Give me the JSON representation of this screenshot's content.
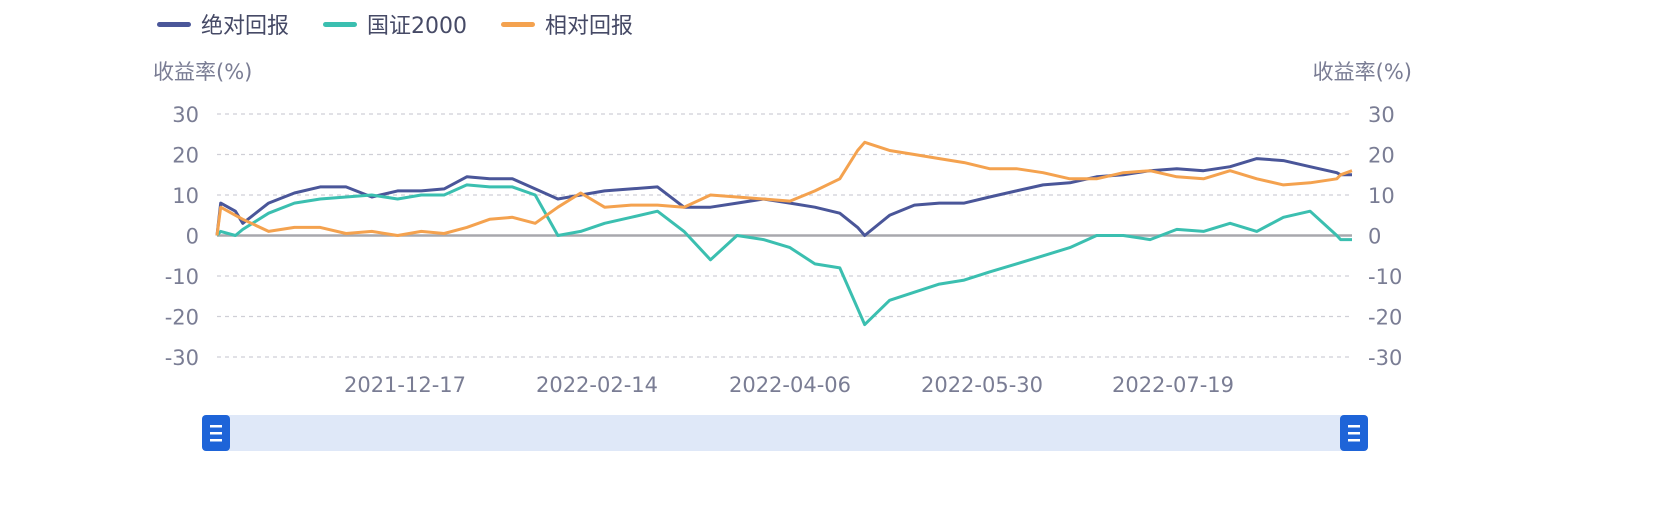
{
  "legend": [
    {
      "name": "绝对回报",
      "color": "#4a5699"
    },
    {
      "name": "国证2000",
      "color": "#3bbfb0"
    },
    {
      "name": "相对回报",
      "color": "#f4a24f"
    }
  ],
  "chart_data": {
    "type": "line",
    "ylabel_left": "收益率(%)",
    "ylabel_right": "收益率(%)",
    "ylim": [
      -30,
      30
    ],
    "y_ticks": [
      30,
      20,
      10,
      0,
      -10,
      -20,
      -30
    ],
    "x_ticks": [
      "2021-12-17",
      "2022-02-14",
      "2022-04-06",
      "2022-05-30",
      "2022-07-19"
    ],
    "grid": true,
    "legend_position": "top-left",
    "x": [
      "2021-10-27",
      "2021-10-28",
      "2021-11-01",
      "2021-11-03",
      "2021-11-10",
      "2021-11-17",
      "2021-11-24",
      "2021-12-01",
      "2021-12-08",
      "2021-12-15",
      "2021-12-22",
      "2021-12-29",
      "2022-01-05",
      "2022-01-12",
      "2022-01-19",
      "2022-01-26",
      "2022-02-02",
      "2022-02-09",
      "2022-02-16",
      "2022-02-23",
      "2022-03-02",
      "2022-03-09",
      "2022-03-16",
      "2022-03-23",
      "2022-03-30",
      "2022-04-06",
      "2022-04-13",
      "2022-04-20",
      "2022-04-25",
      "2022-04-27",
      "2022-05-04",
      "2022-05-11",
      "2022-05-18",
      "2022-05-25",
      "2022-06-01",
      "2022-06-08",
      "2022-06-15",
      "2022-06-22",
      "2022-06-29",
      "2022-07-06",
      "2022-07-13",
      "2022-07-20",
      "2022-07-27",
      "2022-08-03",
      "2022-08-10",
      "2022-08-17",
      "2022-08-24",
      "2022-08-31",
      "2022-09-01",
      "2022-09-04"
    ],
    "series": [
      {
        "name": "绝对回报",
        "color": "#4a5699",
        "values": [
          0,
          8,
          6,
          3,
          8,
          10.5,
          12,
          12,
          9.5,
          11,
          11,
          11.5,
          14.5,
          14,
          14,
          11.5,
          9,
          10,
          11,
          11.5,
          12,
          7,
          7,
          8,
          9,
          8,
          7,
          5.5,
          2,
          0,
          5,
          7.5,
          8,
          8,
          9.5,
          11,
          12.5,
          13,
          14.5,
          15,
          16,
          16.5,
          16,
          17,
          19,
          18.5,
          17,
          15.5,
          15,
          15
        ]
      },
      {
        "name": "国证2000",
        "color": "#3bbfb0",
        "values": [
          0,
          1,
          0,
          1.5,
          5.5,
          8,
          9,
          9.5,
          10,
          9,
          10,
          10,
          12.5,
          12,
          12,
          10,
          0,
          1,
          3,
          4.5,
          6,
          1,
          -6,
          0,
          -1,
          -3,
          -7,
          -8,
          -18,
          -22,
          -16,
          -14,
          -12,
          -11,
          -9,
          -7,
          -5,
          -3,
          0,
          0,
          -1,
          1.5,
          1,
          3,
          1,
          4.5,
          6,
          0,
          -1,
          -1
        ]
      },
      {
        "name": "相对回报",
        "color": "#f4a24f",
        "values": [
          0,
          7,
          5,
          4,
          1,
          2,
          2,
          0.5,
          1,
          0,
          1,
          0.5,
          2,
          4,
          4.5,
          3,
          7,
          10.5,
          7,
          7.5,
          7.5,
          7,
          10,
          9.5,
          9,
          8.5,
          11,
          14,
          21,
          23,
          21,
          20,
          19,
          18,
          16.5,
          16.5,
          15.5,
          14,
          14,
          15.5,
          16,
          14.5,
          14,
          16,
          14,
          12.5,
          13,
          14,
          15,
          16
        ]
      }
    ]
  },
  "data_zoom": {
    "start_percent": 0,
    "end_percent": 100,
    "handle_color": "#1e64d8",
    "track_color": "#dfe8f8"
  }
}
